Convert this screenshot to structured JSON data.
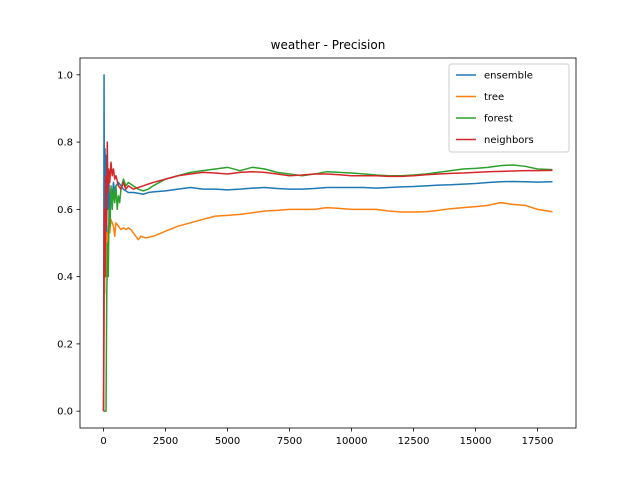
{
  "chart_data": {
    "type": "line",
    "title": "weather - Precision",
    "xlabel": "",
    "ylabel": "",
    "xlim": [
      -950,
      19050
    ],
    "ylim": [
      -0.05,
      1.05
    ],
    "xticks": [
      0,
      2500,
      5000,
      7500,
      10000,
      12500,
      15000,
      17500
    ],
    "xtick_labels": [
      "0",
      "2500",
      "5000",
      "7500",
      "10000",
      "12500",
      "15000",
      "17500"
    ],
    "yticks": [
      0.0,
      0.2,
      0.4,
      0.6,
      0.8,
      1.0
    ],
    "ytick_labels": [
      "0.0",
      "0.2",
      "0.4",
      "0.6",
      "0.8",
      "1.0"
    ],
    "grid": false,
    "legend_position": "top-right",
    "series": [
      {
        "name": "ensemble",
        "color": "#1f77b4",
        "x": [
          0,
          20,
          40,
          60,
          80,
          100,
          120,
          150,
          180,
          210,
          250,
          300,
          350,
          400,
          450,
          500,
          600,
          700,
          800,
          900,
          1000,
          1200,
          1400,
          1600,
          1800,
          2000,
          2500,
          3000,
          3500,
          4000,
          4500,
          5000,
          5500,
          6000,
          6500,
          7000,
          7500,
          8000,
          8500,
          9000,
          9500,
          10000,
          10500,
          11000,
          11500,
          12000,
          12500,
          13000,
          13500,
          14000,
          14500,
          15000,
          15500,
          16000,
          16500,
          17000,
          17500,
          18100
        ],
        "y": [
          0.0,
          1.0,
          0.35,
          0.78,
          0.4,
          0.76,
          0.5,
          0.72,
          0.6,
          0.7,
          0.58,
          0.66,
          0.64,
          0.68,
          0.65,
          0.67,
          0.68,
          0.67,
          0.66,
          0.655,
          0.65,
          0.65,
          0.648,
          0.645,
          0.65,
          0.652,
          0.655,
          0.66,
          0.665,
          0.66,
          0.66,
          0.658,
          0.66,
          0.663,
          0.665,
          0.662,
          0.66,
          0.66,
          0.662,
          0.665,
          0.665,
          0.665,
          0.665,
          0.663,
          0.665,
          0.667,
          0.668,
          0.67,
          0.672,
          0.673,
          0.675,
          0.677,
          0.68,
          0.682,
          0.683,
          0.682,
          0.681,
          0.682
        ]
      },
      {
        "name": "tree",
        "color": "#ff7f0e",
        "x": [
          0,
          30,
          60,
          90,
          120,
          150,
          200,
          250,
          300,
          350,
          400,
          450,
          500,
          600,
          700,
          800,
          900,
          1000,
          1100,
          1200,
          1300,
          1400,
          1500,
          1700,
          2000,
          2500,
          3000,
          3500,
          4000,
          4500,
          5000,
          5500,
          6000,
          6500,
          7000,
          7500,
          8000,
          8500,
          9000,
          9500,
          10000,
          10500,
          11000,
          11500,
          12000,
          12500,
          13000,
          13500,
          14000,
          14500,
          15000,
          15500,
          16000,
          16500,
          17000,
          17500,
          18100
        ],
        "y": [
          0.0,
          0.33,
          0.5,
          0.4,
          0.53,
          0.5,
          0.55,
          0.53,
          0.57,
          0.56,
          0.55,
          0.52,
          0.56,
          0.55,
          0.54,
          0.545,
          0.54,
          0.545,
          0.54,
          0.53,
          0.52,
          0.51,
          0.52,
          0.515,
          0.52,
          0.535,
          0.55,
          0.56,
          0.57,
          0.58,
          0.582,
          0.585,
          0.59,
          0.595,
          0.597,
          0.6,
          0.6,
          0.6,
          0.605,
          0.603,
          0.6,
          0.6,
          0.6,
          0.595,
          0.592,
          0.592,
          0.593,
          0.597,
          0.602,
          0.605,
          0.608,
          0.612,
          0.62,
          0.615,
          0.612,
          0.6,
          0.593
        ]
      },
      {
        "name": "forest",
        "color": "#2ca02c",
        "x": [
          0,
          50,
          100,
          130,
          160,
          190,
          220,
          260,
          300,
          350,
          400,
          450,
          500,
          550,
          600,
          650,
          700,
          800,
          900,
          1000,
          1200,
          1400,
          1600,
          1800,
          2000,
          2500,
          3000,
          3500,
          4000,
          4500,
          5000,
          5500,
          6000,
          6500,
          7000,
          7500,
          8000,
          8500,
          9000,
          9500,
          10000,
          10500,
          11000,
          11500,
          12000,
          12500,
          13000,
          13500,
          14000,
          14500,
          15000,
          15500,
          16000,
          16500,
          17000,
          17500,
          18100
        ],
        "y": [
          0.0,
          0.0,
          0.0,
          0.35,
          0.5,
          0.4,
          0.6,
          0.55,
          0.67,
          0.6,
          0.66,
          0.62,
          0.67,
          0.6,
          0.64,
          0.62,
          0.66,
          0.69,
          0.67,
          0.68,
          0.67,
          0.66,
          0.655,
          0.66,
          0.67,
          0.69,
          0.7,
          0.71,
          0.715,
          0.72,
          0.725,
          0.715,
          0.725,
          0.72,
          0.71,
          0.705,
          0.7,
          0.705,
          0.712,
          0.71,
          0.708,
          0.705,
          0.702,
          0.7,
          0.7,
          0.702,
          0.705,
          0.71,
          0.715,
          0.72,
          0.722,
          0.725,
          0.73,
          0.732,
          0.728,
          0.72,
          0.718
        ]
      },
      {
        "name": "neighbors",
        "color": "#d62728",
        "x": [
          0,
          30,
          60,
          90,
          120,
          150,
          180,
          210,
          250,
          300,
          350,
          400,
          450,
          500,
          600,
          700,
          800,
          900,
          1000,
          1200,
          1400,
          1600,
          1800,
          2000,
          2500,
          3000,
          3500,
          4000,
          4500,
          5000,
          5500,
          6000,
          6500,
          7000,
          7500,
          8000,
          8500,
          9000,
          9500,
          10000,
          10500,
          11000,
          11500,
          12000,
          12500,
          13000,
          13500,
          14000,
          14500,
          15000,
          15500,
          16000,
          16500,
          17000,
          17500,
          18100
        ],
        "y": [
          0.0,
          0.6,
          0.4,
          0.7,
          0.55,
          0.8,
          0.65,
          0.72,
          0.68,
          0.74,
          0.7,
          0.72,
          0.69,
          0.7,
          0.67,
          0.66,
          0.68,
          0.66,
          0.67,
          0.66,
          0.665,
          0.67,
          0.675,
          0.68,
          0.69,
          0.7,
          0.705,
          0.71,
          0.708,
          0.705,
          0.71,
          0.712,
          0.71,
          0.705,
          0.7,
          0.702,
          0.705,
          0.705,
          0.703,
          0.7,
          0.7,
          0.7,
          0.698,
          0.698,
          0.7,
          0.703,
          0.705,
          0.707,
          0.708,
          0.71,
          0.712,
          0.713,
          0.714,
          0.715,
          0.715,
          0.716
        ]
      }
    ]
  }
}
